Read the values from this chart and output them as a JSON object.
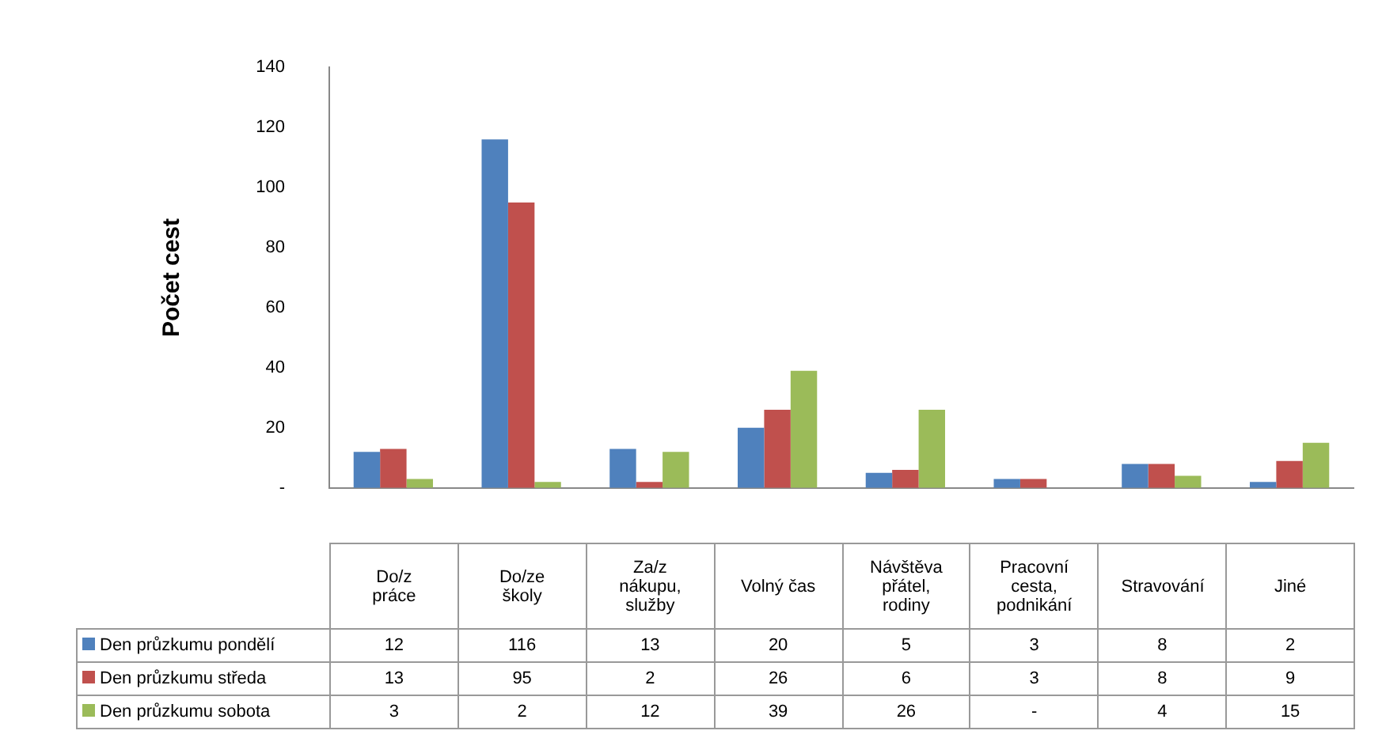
{
  "chart_data": {
    "type": "bar",
    "ylabel": "Počet cest",
    "categories": [
      "Do/z práce",
      "Do/ze školy",
      "Za/z nákupu, služby",
      "Volný čas",
      "Návštěva přátel, rodiny",
      "Pracovní cesta, podnikání",
      "Stravování",
      "Jiné"
    ],
    "series": [
      {
        "name": "Den průzkumu pondělí",
        "color": "#4f81bd",
        "values": [
          12,
          116,
          13,
          20,
          5,
          3,
          8,
          2
        ],
        "value_labels": [
          "12",
          "116",
          "13",
          "20",
          "5",
          "3",
          "8",
          "2"
        ]
      },
      {
        "name": "Den průzkumu středa",
        "color": "#c0504d",
        "values": [
          13,
          95,
          2,
          26,
          6,
          3,
          8,
          9
        ],
        "value_labels": [
          "13",
          "95",
          "2",
          "26",
          "6",
          "3",
          "8",
          "9"
        ]
      },
      {
        "name": "Den průzkumu sobota",
        "color": "#9bbb59",
        "values": [
          3,
          2,
          12,
          39,
          26,
          null,
          4,
          15
        ],
        "value_labels": [
          "3",
          "2",
          "12",
          "39",
          "26",
          "-",
          "4",
          "15"
        ]
      }
    ],
    "ylim": [
      0,
      140
    ],
    "yticks": [
      {
        "value": 0,
        "label": "-"
      },
      20,
      40,
      60,
      80,
      100,
      120,
      140
    ],
    "grid": false,
    "legend": "bottom left"
  }
}
